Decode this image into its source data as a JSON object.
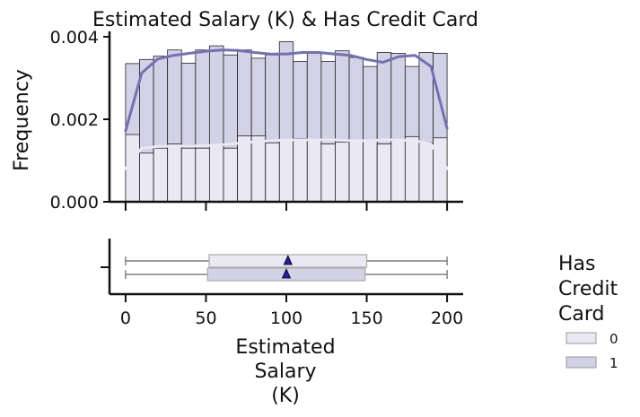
{
  "chart_data": {
    "type": "histogram",
    "title": "Estimated Salary (K) & Has Credit Card",
    "ylabel": "Frequency",
    "xlabel_lines": [
      "Estimated",
      "Salary",
      "(K)"
    ],
    "xlim": [
      -10,
      210
    ],
    "ylim": [
      0,
      0.004
    ],
    "x_ticks": [
      0,
      50,
      100,
      150,
      200
    ],
    "x_tick_labels": [
      "0",
      "50",
      "100",
      "150",
      "200"
    ],
    "y_ticks": [
      0,
      0.002,
      0.004
    ],
    "y_tick_labels": [
      "0.000",
      "0.002",
      "0.004"
    ],
    "bin_edges": [
      0,
      8.7,
      17.4,
      26.1,
      34.8,
      43.5,
      52.2,
      60.9,
      69.6,
      78.3,
      87.0,
      95.7,
      104.3,
      113.0,
      121.7,
      130.4,
      139.1,
      147.8,
      156.5,
      165.2,
      173.9,
      182.6,
      191.3,
      200
    ],
    "series": [
      {
        "name": "1",
        "color": "#d2d1e6",
        "kde_color": "#7570b3",
        "values": [
          0.00335,
          0.00345,
          0.00353,
          0.00368,
          0.00336,
          0.00368,
          0.00378,
          0.00356,
          0.00368,
          0.00348,
          0.00356,
          0.00388,
          0.0034,
          0.00363,
          0.0034,
          0.00366,
          0.0035,
          0.00328,
          0.00362,
          0.0036,
          0.00328,
          0.00362,
          0.0036
        ],
        "kde_x": [
          0,
          10,
          20,
          30,
          40,
          50,
          60,
          70,
          80,
          90,
          100,
          110,
          120,
          130,
          140,
          150,
          160,
          170,
          180,
          190,
          200
        ],
        "kde_y": [
          0.00172,
          0.00312,
          0.00346,
          0.00355,
          0.0036,
          0.00365,
          0.00368,
          0.00367,
          0.00362,
          0.00358,
          0.00358,
          0.00362,
          0.00362,
          0.00358,
          0.00355,
          0.00345,
          0.00338,
          0.00352,
          0.00355,
          0.00328,
          0.00178
        ],
        "box": {
          "min": 0,
          "q1": 51,
          "mean": 100,
          "q3": 149,
          "max": 200
        }
      },
      {
        "name": "0",
        "color": "#e9e8f3",
        "kde_color": "#e9e8f3",
        "values": [
          0.00163,
          0.00118,
          0.0013,
          0.0014,
          0.0013,
          0.0013,
          0.00138,
          0.0013,
          0.0016,
          0.0016,
          0.00143,
          0.0015,
          0.00153,
          0.00148,
          0.0014,
          0.00145,
          0.0015,
          0.00148,
          0.0014,
          0.0015,
          0.00158,
          0.00143,
          0.00155
        ],
        "kde_x": [
          0,
          10,
          20,
          30,
          40,
          50,
          60,
          70,
          80,
          90,
          100,
          110,
          120,
          130,
          140,
          150,
          160,
          170,
          180,
          190,
          200
        ],
        "kde_y": [
          0.0008,
          0.0013,
          0.00134,
          0.00135,
          0.00135,
          0.00136,
          0.00138,
          0.00142,
          0.00145,
          0.00148,
          0.0015,
          0.0015,
          0.0015,
          0.0015,
          0.00148,
          0.00148,
          0.0015,
          0.0015,
          0.00148,
          0.0014,
          0.0008
        ],
        "box": {
          "min": 0,
          "q1": 52,
          "mean": 101,
          "q3": 150,
          "max": 200
        }
      }
    ],
    "legend": {
      "title_lines": [
        "Has",
        "Credit",
        "Card"
      ],
      "entries": [
        {
          "label": "0",
          "color": "#e9e8f3"
        },
        {
          "label": "1",
          "color": "#d2d1e6"
        }
      ],
      "placement": "right"
    },
    "grid": false
  }
}
